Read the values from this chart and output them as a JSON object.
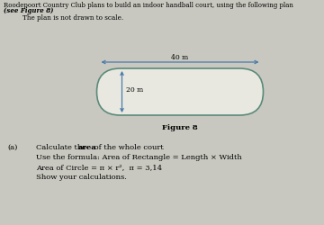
{
  "title_line1": "Roodepoort Country Club plans to build an indoor handball court, using the following plan",
  "title_line2": "(see Figure 8)",
  "subtitle": "The plan is not drawn to scale.",
  "figure_label": "Figure 8",
  "dim_horizontal": "40 m",
  "dim_vertical": "20 m",
  "part_a_label": "(a)",
  "part_a_line2": "Use the formula: Area of Rectangle = Length × Width",
  "part_a_line3": "Area of Circle = π × r²,  π = 3,14",
  "part_a_line4": "Show your calculations.",
  "bg_color": "#c8c8c0",
  "court_fill": "#e8e8e0",
  "court_edge": "#5a8a7a",
  "arrow_color": "#4a7aaa",
  "text_color": "#000000"
}
